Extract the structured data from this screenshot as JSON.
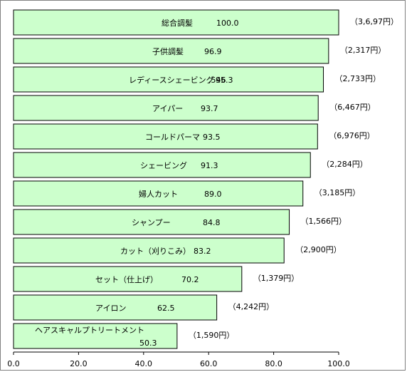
{
  "chart_data": {
    "type": "bar",
    "orientation": "horizontal",
    "xlim": [
      0,
      100
    ],
    "x_ticks": [
      "0.0",
      "20.0",
      "40.0",
      "60.0",
      "80.0",
      "100.0"
    ],
    "bar_color": "#ccffcc",
    "categories": [
      "総合調髪",
      "子供調髪",
      "レディースシェービング",
      "アイパー",
      "コールドパーマ",
      "シェービング",
      "婦人カット",
      "シャンプー",
      "カット（刈りこみ）",
      "セット（仕上げ）",
      "アイロン",
      "ヘアスキャルプトリートメント"
    ],
    "values": [
      100.0,
      96.9,
      95.3,
      93.7,
      93.5,
      91.3,
      89.0,
      84.8,
      83.2,
      70.2,
      62.5,
      50.3
    ],
    "value_labels": [
      "100.0",
      "96.9",
      "95.3",
      "93.7",
      "93.5",
      "91.3",
      "89.0",
      "84.8",
      "83.2",
      "70.2",
      "62.5",
      "50.3"
    ],
    "price_labels": [
      "（3,6,97円）",
      "（2,317円）",
      "（2,733円）",
      "（6,467円）",
      "（6,976円）",
      "（2,284円）",
      "（3,185円）",
      "（1,566円）",
      "（2,900円）",
      "（1,379円）",
      "（4,242円）",
      "（1,590円）"
    ],
    "annotation": ",546"
  }
}
